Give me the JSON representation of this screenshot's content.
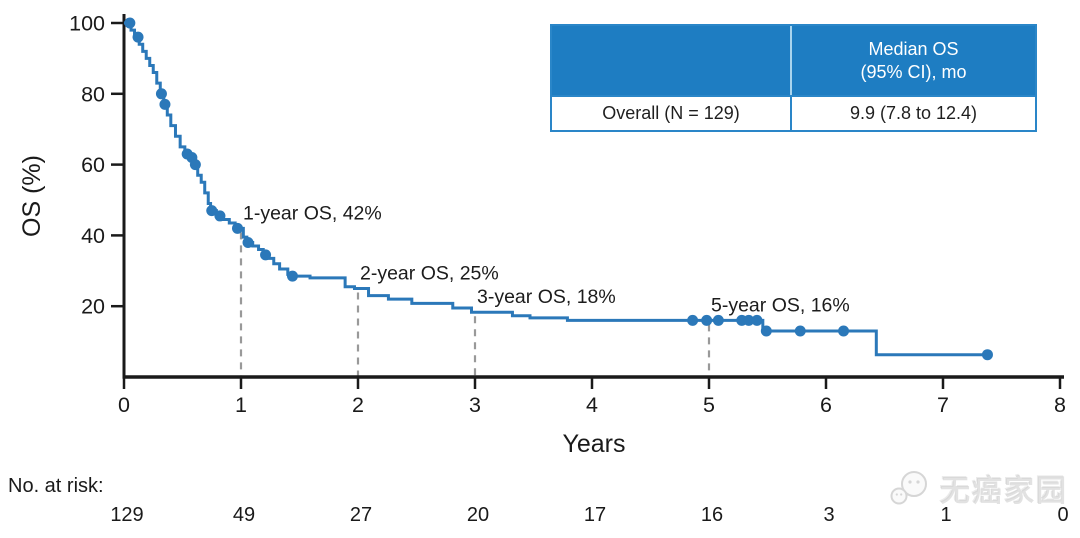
{
  "chart_data": {
    "type": "line",
    "subtype": "kaplan-meier-step",
    "title": "",
    "xlabel": "Years",
    "ylabel": "OS (%)",
    "xlim": [
      0,
      8
    ],
    "ylim": [
      0,
      100
    ],
    "x_ticks": [
      0,
      1,
      2,
      3,
      4,
      5,
      6,
      7,
      8
    ],
    "y_ticks": [
      20,
      40,
      60,
      80,
      100
    ],
    "grid": false,
    "legend_position": "none",
    "series": [
      {
        "name": "Overall",
        "color": "#2b78b9",
        "steps": [
          [
            0,
            100
          ],
          [
            0.06,
            98
          ],
          [
            0.09,
            96
          ],
          [
            0.13,
            94
          ],
          [
            0.16,
            92
          ],
          [
            0.19,
            90
          ],
          [
            0.22,
            88
          ],
          [
            0.25,
            86
          ],
          [
            0.28,
            83
          ],
          [
            0.31,
            80
          ],
          [
            0.34,
            77
          ],
          [
            0.37,
            74
          ],
          [
            0.4,
            71
          ],
          [
            0.44,
            68
          ],
          [
            0.48,
            65
          ],
          [
            0.52,
            63
          ],
          [
            0.56,
            62
          ],
          [
            0.6,
            60
          ],
          [
            0.63,
            57
          ],
          [
            0.66,
            55
          ],
          [
            0.69,
            52
          ],
          [
            0.72,
            49
          ],
          [
            0.74,
            47
          ],
          [
            0.79,
            45.5
          ],
          [
            0.84,
            44.5
          ],
          [
            0.9,
            43.5
          ],
          [
            0.95,
            42
          ],
          [
            1.02,
            39.5
          ],
          [
            1.05,
            38
          ],
          [
            1.1,
            37
          ],
          [
            1.15,
            36
          ],
          [
            1.19,
            34.5
          ],
          [
            1.23,
            33.5
          ],
          [
            1.28,
            32
          ],
          [
            1.33,
            30.5
          ],
          [
            1.4,
            29
          ],
          [
            1.43,
            28.5
          ],
          [
            1.59,
            28
          ],
          [
            1.89,
            25.5
          ],
          [
            1.97,
            25
          ],
          [
            2.09,
            23
          ],
          [
            2.26,
            22
          ],
          [
            2.46,
            20.8
          ],
          [
            2.81,
            19.5
          ],
          [
            2.97,
            18.3
          ],
          [
            3.32,
            17.3
          ],
          [
            3.47,
            16.7
          ],
          [
            3.79,
            16
          ],
          [
            5.46,
            13
          ],
          [
            6.43,
            6.3
          ]
        ],
        "end_time": 7.38,
        "censor_times": [
          0.05,
          0.12,
          0.32,
          0.35,
          0.54,
          0.58,
          0.61,
          0.75,
          0.82,
          0.97,
          1.06,
          1.21,
          1.44,
          4.86,
          4.98,
          5.08,
          5.28,
          5.34,
          5.41,
          5.49,
          5.78,
          6.15,
          7.38
        ]
      }
    ],
    "annotations": [
      {
        "label": "1-year OS, 42%",
        "t": 1,
        "p": 42
      },
      {
        "label": "2-year OS, 25%",
        "t": 2,
        "p": 25
      },
      {
        "label": "3-year OS, 18%",
        "t": 3,
        "p": 18.3
      },
      {
        "label": "5-year OS, 16%",
        "t": 5,
        "p": 16
      }
    ],
    "risk_table": {
      "label": "No. at risk:",
      "values": [
        "129",
        "49",
        "27",
        "20",
        "17",
        "16",
        "3",
        "1",
        "0"
      ]
    }
  },
  "summary_table": {
    "header": {
      "col1": "",
      "col2_line1": "Median OS",
      "col2_line2": "(95% CI), mo"
    },
    "rows": [
      {
        "label": "Overall (N = 129)",
        "value": "9.9 (7.8 to 12.4)"
      }
    ]
  },
  "watermark": {
    "text": "无癌家园",
    "icon": "wechat-bubbles-icon"
  },
  "colors": {
    "curve": "#2b78b9",
    "axis": "#1a1a1a",
    "dashed_line": "#999999",
    "table_header_bg": "#1e7dc2",
    "table_border": "#2a86c8",
    "table_header_divider": "#a8d4ee",
    "annotation_text": "#1c1c1c"
  }
}
